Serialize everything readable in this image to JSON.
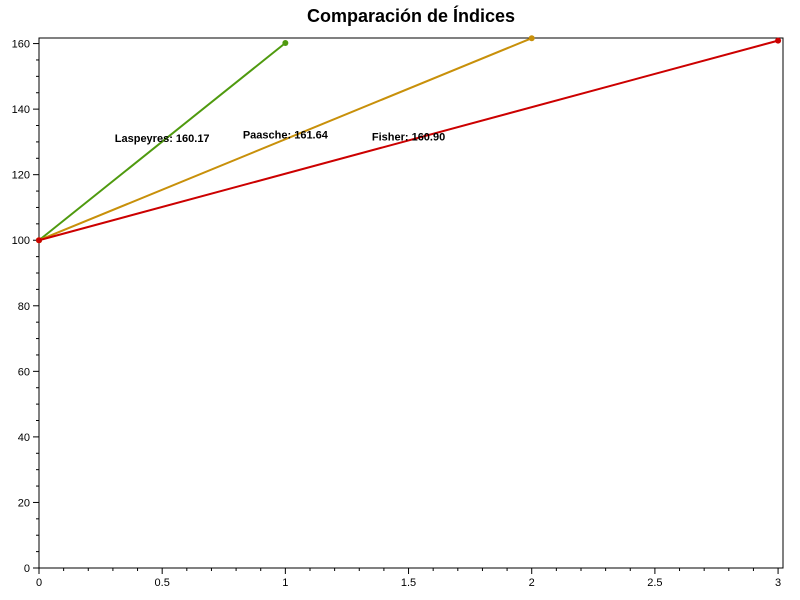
{
  "chart_data": {
    "type": "line",
    "title": "Comparación de Índices",
    "xlabel": "",
    "ylabel": "",
    "xlim": [
      0,
      3.02
    ],
    "ylim": [
      0,
      161.7
    ],
    "x_ticks": [
      0,
      0.5,
      1,
      1.5,
      2,
      2.5,
      3
    ],
    "x_tick_labels": [
      "0",
      "0.5",
      "1",
      "1.5",
      "2",
      "2.5",
      "3"
    ],
    "y_ticks": [
      0,
      20,
      40,
      60,
      80,
      100,
      120,
      140,
      160
    ],
    "y_tick_labels": [
      "0",
      "20",
      "40",
      "60",
      "80",
      "100",
      "120",
      "140",
      "160"
    ],
    "grid": false,
    "series": [
      {
        "x": [
          0,
          1
        ],
        "y": [
          100,
          160.17
        ],
        "color": "#4f9a0f"
      },
      {
        "x": [
          0,
          2
        ],
        "y": [
          100,
          161.64
        ],
        "color": "#c8900a"
      },
      {
        "x": [
          0,
          3
        ],
        "y": [
          100,
          160.9
        ],
        "color": "#cc0000"
      }
    ],
    "annotations": [
      {
        "text": "Laspeyres: 160.17",
        "x": 0.5,
        "y": 130
      },
      {
        "text": "Paasche: 161.64",
        "x": 1.0,
        "y": 131
      },
      {
        "text": "Fisher: 160.90",
        "x": 1.5,
        "y": 130.5
      }
    ]
  }
}
